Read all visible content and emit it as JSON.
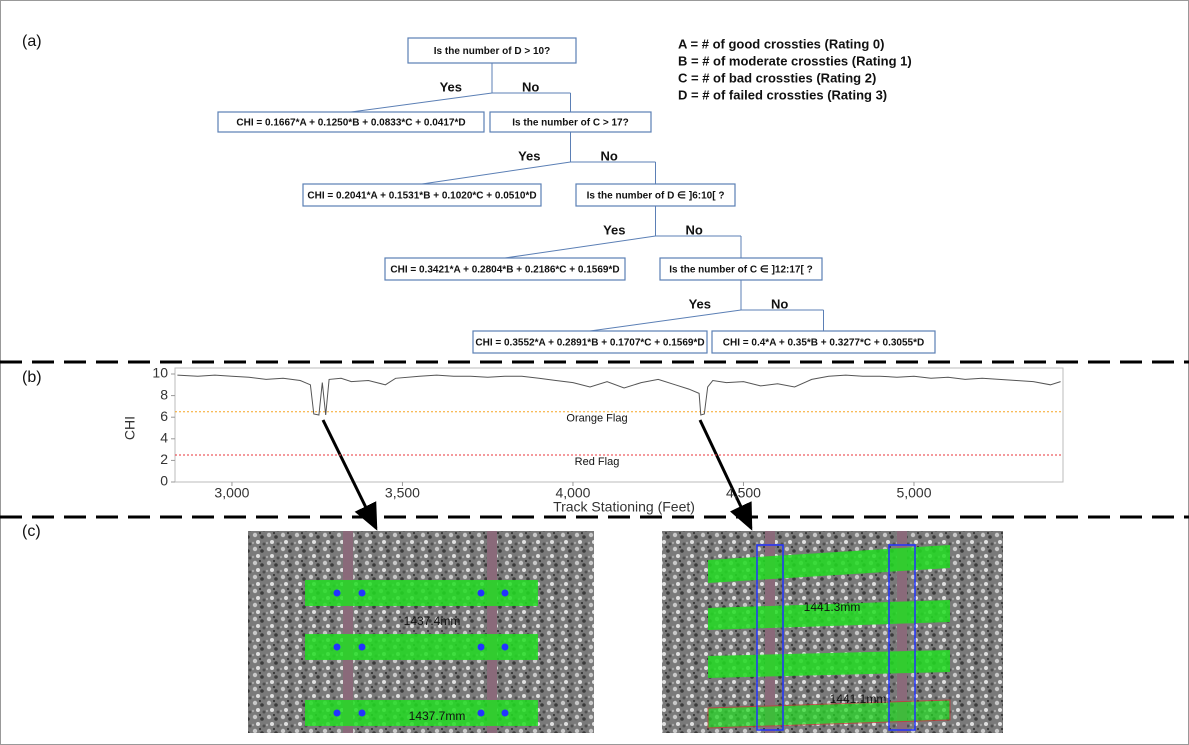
{
  "panel_labels": [
    "(a)",
    "(b)",
    "(c)"
  ],
  "tree": {
    "nodes": [
      {
        "question": "Is the number of D > 10?",
        "yes": "Yes",
        "no": "No",
        "formula": "CHI = 0.1667*A + 0.1250*B + 0.0833*C + 0.0417*D"
      },
      {
        "question": "Is the number of C > 17?",
        "yes": "Yes",
        "no": "No",
        "formula": "CHI = 0.2041*A + 0.1531*B + 0.1020*C + 0.0510*D"
      },
      {
        "question": "Is the number of D ∈ ]6:10[ ?",
        "yes": "Yes",
        "no": "No",
        "formula": "CHI = 0.3421*A + 0.2804*B + 0.2186*C + 0.1569*D"
      },
      {
        "question": "Is the number of C ∈ ]12:17[ ?",
        "yes": "Yes",
        "no": "No",
        "formula": "CHI = 0.3552*A + 0.2891*B + 0.1707*C + 0.1569*D"
      }
    ],
    "final_formula": "CHI = 0.4*A + 0.35*B + 0.3277*C + 0.3055*D"
  },
  "definitions": [
    "A = # of good crossties (Rating 0)",
    "B = # of moderate crossties (Rating 1)",
    "C = # of bad crossties (Rating 2)",
    "D = # of failed crossties (Rating 3)"
  ],
  "chart_data": {
    "type": "line",
    "xlabel": "Track Stationing (Feet)",
    "ylabel": "CHI",
    "color": "#555555",
    "x": [
      2840,
      2900,
      2950,
      3000,
      3050,
      3100,
      3150,
      3200,
      3230,
      3240,
      3255,
      3265,
      3275,
      3285,
      3320,
      3350,
      3400,
      3450,
      3480,
      3550,
      3600,
      3650,
      3700,
      3750,
      3800,
      3850,
      3900,
      3950,
      4000,
      4050,
      4100,
      4150,
      4200,
      4250,
      4300,
      4340,
      4370,
      4375,
      4385,
      4395,
      4410,
      4450,
      4500,
      4550,
      4600,
      4650,
      4700,
      4750,
      4800,
      4850,
      4900,
      4950,
      5000,
      5050,
      5100,
      5150,
      5200,
      5250,
      5300,
      5350,
      5400,
      5430
    ],
    "values": [
      9.9,
      9.8,
      9.9,
      9.8,
      9.7,
      9.5,
      9.6,
      9.4,
      9.0,
      6.3,
      6.2,
      9.2,
      6.2,
      9.5,
      9.6,
      9.3,
      9.4,
      9.0,
      9.6,
      9.8,
      9.9,
      9.8,
      9.8,
      9.7,
      9.8,
      9.8,
      9.6,
      9.4,
      9.2,
      8.8,
      9.3,
      8.7,
      9.2,
      9.5,
      9.0,
      8.6,
      8.2,
      6.2,
      6.3,
      8.8,
      9.4,
      9.2,
      9.3,
      8.9,
      9.1,
      8.8,
      9.5,
      9.8,
      9.9,
      9.8,
      9.8,
      9.7,
      9.8,
      9.6,
      9.7,
      9.5,
      9.6,
      9.5,
      9.4,
      9.3,
      9.0,
      9.3
    ],
    "xlim": [
      2833,
      5437
    ],
    "ylim": [
      0,
      10
    ],
    "xticks": [
      {
        "value": 3000,
        "label": "3,000"
      },
      {
        "value": 3500,
        "label": "3,500"
      },
      {
        "value": 4000,
        "label": "4,000"
      },
      {
        "value": 4500,
        "label": "4,500"
      },
      {
        "value": 5000,
        "label": "5,000"
      }
    ],
    "yticks": [
      0,
      2,
      4,
      6,
      8,
      10
    ],
    "thresholds": [
      {
        "label": "Orange Flag",
        "value": 6.5,
        "color": "#f5a623"
      },
      {
        "label": "Red Flag",
        "value": 2.5,
        "color": "#e8333a"
      }
    ]
  },
  "photos": [
    {
      "labels": [
        "1437.4mm",
        "1437.7mm"
      ]
    },
    {
      "labels": [
        "1441.3mm",
        "1441.1mm"
      ]
    }
  ]
}
